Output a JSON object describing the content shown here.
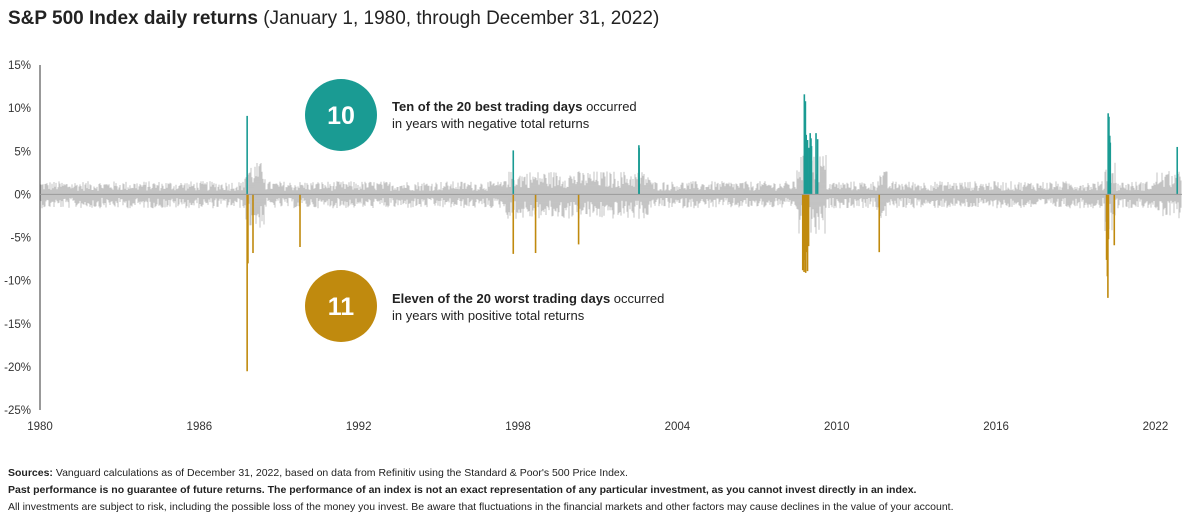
{
  "header": {
    "title_bold": "S&P 500 Index daily returns",
    "title_rest": " (January 1, 1980, through December 31, 2022)"
  },
  "callouts": {
    "best": {
      "number": "10",
      "bold": "Ten of the 20 best trading days",
      "rest": " occurred",
      "line2": "in years with negative total returns",
      "color": "#1a9b93"
    },
    "worst": {
      "number": "11",
      "bold": "Eleven of the 20 worst trading days",
      "rest": " occurred",
      "line2": "in years with positive total returns",
      "color": "#c08a0e"
    }
  },
  "footer": {
    "sources_label": "Sources:",
    "sources_text": " Vanguard calculations as of December 31, 2022, based on data from Refinitiv using the Standard & Poor's 500 Price Index.",
    "disclaimer_bold": "Past performance is no guarantee of future returns. The performance of an index is not an exact representation of any particular investment, as you cannot invest directly in an index.",
    "disclaimer_rest": "All investments are subject to risk, including the possible loss of the money you invest. Be aware that fluctuations in the financial markets and other factors may cause declines in the value of your account."
  },
  "chart_data": {
    "type": "bar",
    "xlim": [
      1980,
      2023
    ],
    "ylim": [
      -25,
      15
    ],
    "y_ticks": [
      15,
      10,
      5,
      0,
      -5,
      -10,
      -15,
      -20,
      -25
    ],
    "y_tick_labels": [
      "15%",
      "10%",
      "5%",
      "0%",
      "-5%",
      "-10%",
      "-15%",
      "-20%",
      "-25%"
    ],
    "x_ticks": [
      1980,
      1986,
      1992,
      1998,
      2004,
      2010,
      2016,
      2022
    ],
    "x_tick_labels": [
      "1980",
      "1986",
      "1992",
      "1998",
      "2004",
      "2010",
      "2016",
      "2022"
    ],
    "colors": {
      "background": "#bdbdbd",
      "best": "#1a9b93",
      "worst": "#c08a0e",
      "axis": "#333333"
    },
    "best_days": [
      {
        "x": 1987.8,
        "y": 9.1
      },
      {
        "x": 1997.82,
        "y": 5.1
      },
      {
        "x": 2002.55,
        "y": 5.7
      },
      {
        "x": 2002.56,
        "y": 5.4
      },
      {
        "x": 2008.78,
        "y": 11.6
      },
      {
        "x": 2008.82,
        "y": 10.8
      },
      {
        "x": 2008.85,
        "y": 6.9
      },
      {
        "x": 2008.9,
        "y": 6.3
      },
      {
        "x": 2008.95,
        "y": 5.4
      },
      {
        "x": 2008.98,
        "y": 5.1
      },
      {
        "x": 2009.0,
        "y": 7.1
      },
      {
        "x": 2009.03,
        "y": 6.5
      },
      {
        "x": 2009.05,
        "y": 5.6
      },
      {
        "x": 2009.22,
        "y": 7.1
      },
      {
        "x": 2009.28,
        "y": 6.4
      },
      {
        "x": 2020.22,
        "y": 9.4
      },
      {
        "x": 2020.25,
        "y": 9.0
      },
      {
        "x": 2020.28,
        "y": 6.8
      },
      {
        "x": 2020.3,
        "y": 6.0
      },
      {
        "x": 2022.82,
        "y": 5.5
      }
    ],
    "worst_days": [
      {
        "x": 1987.8,
        "y": -20.5
      },
      {
        "x": 1987.83,
        "y": -8.0
      },
      {
        "x": 1988.02,
        "y": -6.8
      },
      {
        "x": 1989.79,
        "y": -6.1
      },
      {
        "x": 1997.82,
        "y": -6.9
      },
      {
        "x": 1998.66,
        "y": -6.8
      },
      {
        "x": 2000.28,
        "y": -5.8
      },
      {
        "x": 2008.72,
        "y": -8.8
      },
      {
        "x": 2008.77,
        "y": -9.0
      },
      {
        "x": 2008.8,
        "y": -7.6
      },
      {
        "x": 2008.83,
        "y": -9.1
      },
      {
        "x": 2008.87,
        "y": -6.7
      },
      {
        "x": 2008.9,
        "y": -8.9
      },
      {
        "x": 2008.94,
        "y": -6.0
      },
      {
        "x": 2011.6,
        "y": -6.7
      },
      {
        "x": 2020.16,
        "y": -7.6
      },
      {
        "x": 2020.19,
        "y": -9.5
      },
      {
        "x": 2020.21,
        "y": -12.0
      },
      {
        "x": 2020.23,
        "y": -5.2
      },
      {
        "x": 2020.45,
        "y": -5.9
      }
    ]
  }
}
